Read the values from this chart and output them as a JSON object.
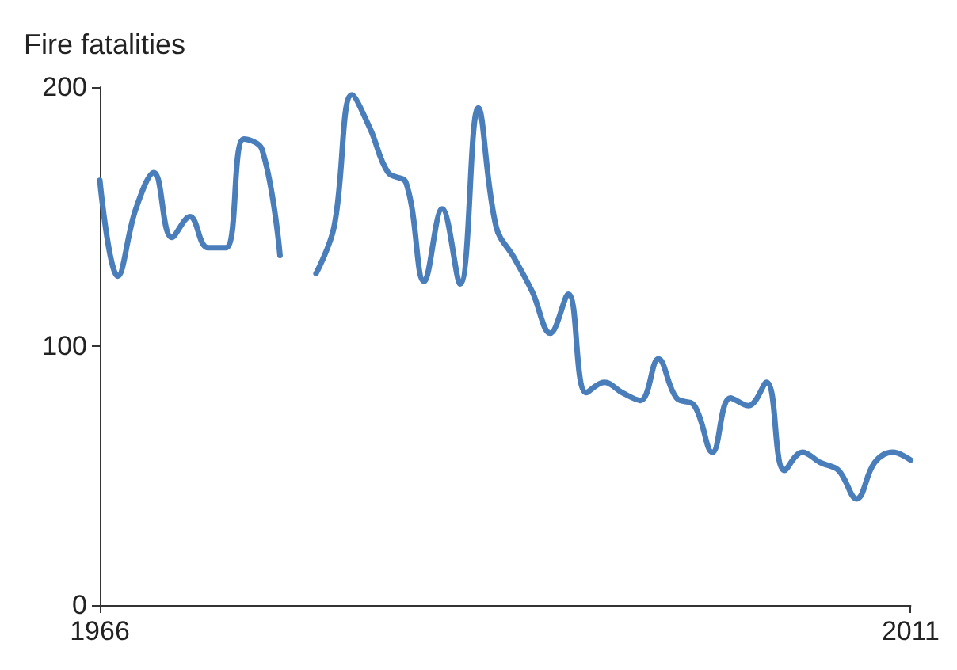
{
  "chart_data": {
    "type": "line",
    "ylabel": "Fire fatalities",
    "x": [
      1966,
      1967,
      1968,
      1969,
      1970,
      1971,
      1972,
      1973,
      1974,
      1975,
      1976,
      1977,
      1978,
      1979,
      1980,
      1981,
      1982,
      1983,
      1984,
      1985,
      1986,
      1987,
      1988,
      1989,
      1990,
      1991,
      1992,
      1993,
      1994,
      1995,
      1996,
      1997,
      1998,
      1999,
      2000,
      2001,
      2002,
      2003,
      2004,
      2005,
      2006,
      2007,
      2008,
      2009,
      2010,
      2011
    ],
    "series": [
      {
        "color": "#4a7ebb",
        "values": [
          164,
          127,
          153,
          167,
          142,
          150,
          138,
          138,
          180,
          176,
          135,
          null,
          128,
          146,
          197,
          184,
          167,
          163,
          125,
          153,
          124,
          192,
          146,
          134,
          121,
          105,
          120,
          82,
          86,
          82,
          79,
          95,
          80,
          77,
          59,
          80,
          77,
          86,
          52,
          59,
          55,
          52,
          41,
          55,
          59,
          56
        ]
      }
    ],
    "xlim": [
      1966,
      2011
    ],
    "xticks": [
      1966,
      2011
    ],
    "ylim": [
      0,
      200
    ],
    "yticks": [
      0,
      100,
      200
    ],
    "grid": false,
    "marker": "none",
    "line_style": "solid"
  }
}
